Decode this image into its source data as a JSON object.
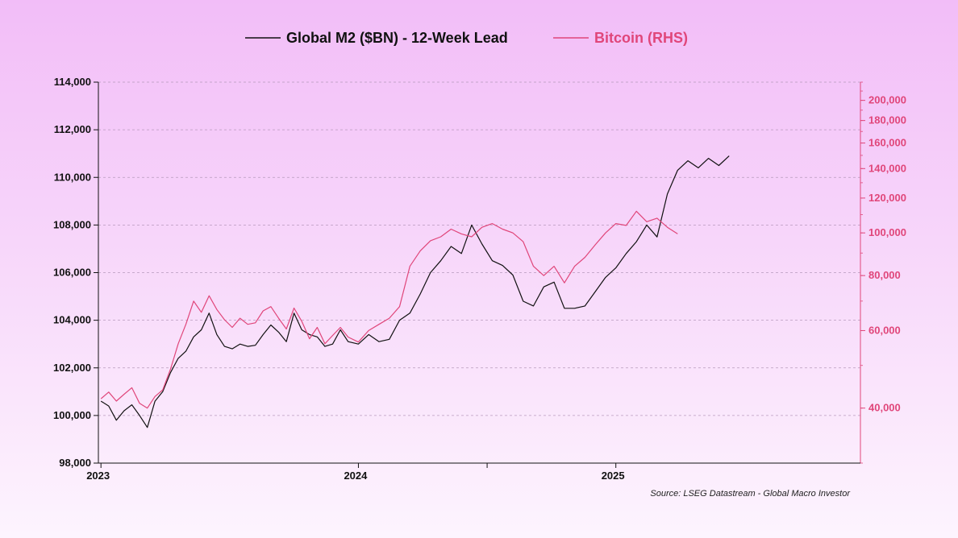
{
  "chart_data": {
    "type": "line",
    "source": "Source: LSEG Datastream - Global Macro Investor",
    "legend_position": "top-center",
    "grid": true,
    "colors": {
      "m2": "#111111",
      "btc": "#e0467a"
    },
    "x_ticks": [
      {
        "label": "2023",
        "t": 2023.0
      },
      {
        "label": "2024",
        "t": 2024.0
      },
      {
        "label": "",
        "t": 2024.5
      },
      {
        "label": "2025",
        "t": 2025.0
      }
    ],
    "xlim": [
      2022.99,
      2025.95
    ],
    "y_left": {
      "ylim": [
        98000,
        114000
      ],
      "ticks": [
        98000,
        100000,
        102000,
        104000,
        106000,
        108000,
        110000,
        112000,
        114000
      ],
      "tick_labels": [
        "98,000",
        "100,000",
        "102,000",
        "104,000",
        "106,000",
        "108,000",
        "110,000",
        "112,000",
        "114,000"
      ]
    },
    "y_right": {
      "scale": "log",
      "ylim": [
        30000,
        220000
      ],
      "ticks": [
        40000,
        60000,
        80000,
        100000,
        120000,
        140000,
        160000,
        180000,
        200000
      ],
      "tick_labels": [
        "40,000",
        "60,000",
        "80,000",
        "100,000",
        "120,000",
        "140,000",
        "160,000",
        "180,000",
        "200,000"
      ]
    },
    "series": [
      {
        "name": "Global M2 ($BN) - 12-Week Lead",
        "axis": "left",
        "t": [
          2023.0,
          2023.03,
          2023.06,
          2023.09,
          2023.12,
          2023.15,
          2023.18,
          2023.21,
          2023.24,
          2023.27,
          2023.3,
          2023.33,
          2023.36,
          2023.39,
          2023.42,
          2023.45,
          2023.48,
          2023.51,
          2023.54,
          2023.57,
          2023.6,
          2023.63,
          2023.66,
          2023.69,
          2023.72,
          2023.75,
          2023.78,
          2023.81,
          2023.84,
          2023.87,
          2023.9,
          2023.93,
          2023.96,
          2024.0,
          2024.04,
          2024.08,
          2024.12,
          2024.16,
          2024.2,
          2024.24,
          2024.28,
          2024.32,
          2024.36,
          2024.4,
          2024.44,
          2024.48,
          2024.52,
          2024.56,
          2024.6,
          2024.64,
          2024.68,
          2024.72,
          2024.76,
          2024.8,
          2024.84,
          2024.88,
          2024.92,
          2024.96,
          2025.0,
          2025.04,
          2025.08,
          2025.12,
          2025.16,
          2025.2,
          2025.24,
          2025.28,
          2025.32,
          2025.36,
          2025.4,
          2025.44
        ],
        "values": [
          100600,
          100400,
          99800,
          100200,
          100450,
          100000,
          99500,
          100600,
          101000,
          101800,
          102400,
          102700,
          103300,
          103600,
          104300,
          103400,
          102900,
          102800,
          103000,
          102900,
          102950,
          103400,
          103800,
          103500,
          103100,
          104300,
          103600,
          103400,
          103300,
          102900,
          103000,
          103600,
          103100,
          103000,
          103400,
          103100,
          103200,
          104000,
          104300,
          105100,
          106000,
          106500,
          107100,
          106800,
          108000,
          107200,
          106500,
          106300,
          105900,
          104800,
          104600,
          105400,
          105600,
          104500,
          104500,
          104600,
          105200,
          105800,
          106200,
          106800,
          107300,
          108000,
          107500,
          109300,
          110300,
          110700,
          110400,
          110800,
          110500,
          110900
        ]
      },
      {
        "name": "Bitcoin (RHS)",
        "axis": "right",
        "t": [
          2023.0,
          2023.03,
          2023.06,
          2023.09,
          2023.12,
          2023.15,
          2023.18,
          2023.21,
          2023.24,
          2023.27,
          2023.3,
          2023.33,
          2023.36,
          2023.39,
          2023.42,
          2023.45,
          2023.48,
          2023.51,
          2023.54,
          2023.57,
          2023.6,
          2023.63,
          2023.66,
          2023.69,
          2023.72,
          2023.75,
          2023.78,
          2023.81,
          2023.84,
          2023.87,
          2023.9,
          2023.93,
          2023.96,
          2024.0,
          2024.04,
          2024.08,
          2024.12,
          2024.16,
          2024.2,
          2024.24,
          2024.28,
          2024.32,
          2024.36,
          2024.4,
          2024.44,
          2024.48,
          2024.52,
          2024.56,
          2024.6,
          2024.64,
          2024.68,
          2024.72,
          2024.76,
          2024.8,
          2024.84,
          2024.88,
          2024.92,
          2024.96,
          2025.0,
          2025.04,
          2025.08,
          2025.12,
          2025.16,
          2025.2,
          2025.24
        ],
        "values": [
          42000,
          43500,
          41500,
          43000,
          44500,
          41000,
          40000,
          42500,
          44000,
          49000,
          56000,
          62000,
          70000,
          66000,
          72000,
          67000,
          63500,
          61000,
          64000,
          62000,
          62500,
          66500,
          68000,
          64000,
          60500,
          67500,
          63000,
          57500,
          61000,
          56000,
          58500,
          61000,
          58000,
          56500,
          60000,
          62000,
          64000,
          68000,
          84000,
          91000,
          96000,
          98000,
          102000,
          99500,
          98000,
          103000,
          105000,
          102000,
          100000,
          95500,
          84000,
          80000,
          84000,
          77000,
          84000,
          88000,
          94000,
          100000,
          105000,
          104000,
          112000,
          106000,
          108000,
          103000,
          99500
        ]
      }
    ]
  }
}
